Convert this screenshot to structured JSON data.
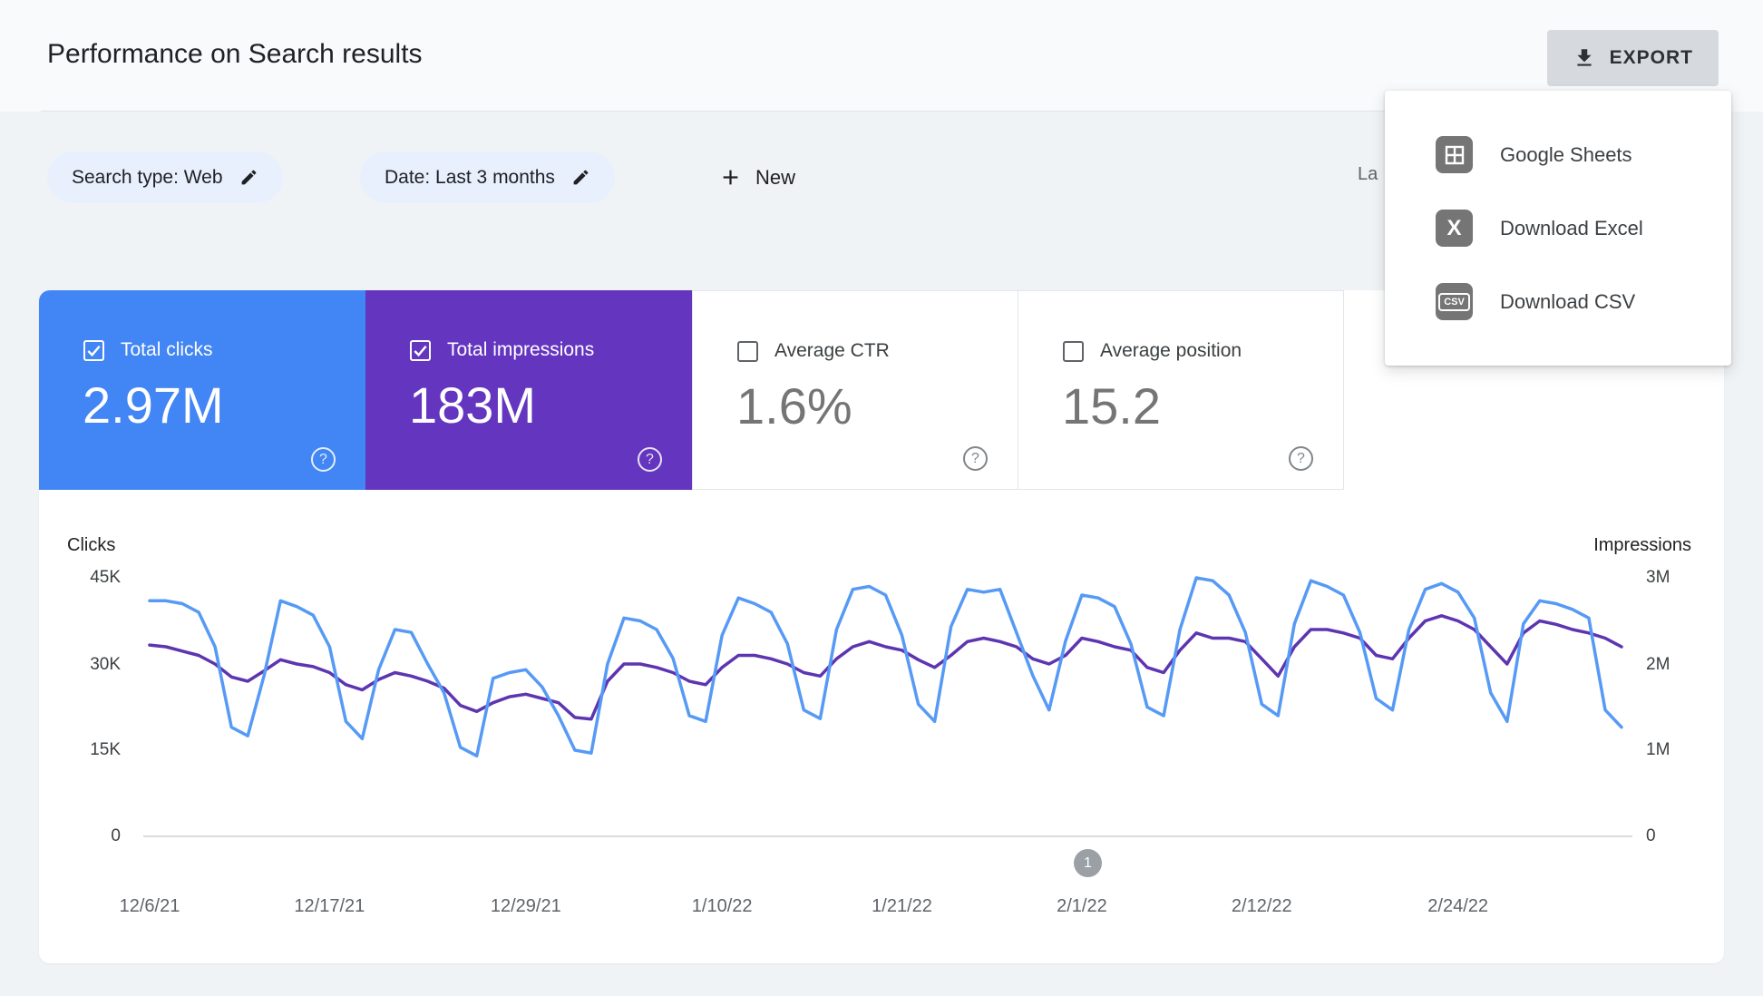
{
  "header": {
    "title": "Performance on Search results",
    "export_label": "EXPORT"
  },
  "export_menu": {
    "items": [
      {
        "icon": "google-sheets",
        "label": "Google Sheets"
      },
      {
        "icon": "excel",
        "label": "Download Excel"
      },
      {
        "icon": "csv",
        "label": "Download CSV"
      }
    ],
    "csv_icon_text": "CSV",
    "excel_icon_text": "X"
  },
  "filters": {
    "search_type_chip": "Search type: Web",
    "date_chip": "Date: Last 3 months",
    "new_label": "New",
    "last_updated_partial": "La"
  },
  "metrics": [
    {
      "label": "Total clicks",
      "value": "2.97M",
      "selected": true,
      "color": "#4285f4"
    },
    {
      "label": "Total impressions",
      "value": "183M",
      "selected": true,
      "color": "#6435bf"
    },
    {
      "label": "Average CTR",
      "value": "1.6%",
      "selected": false,
      "color": "#ffffff"
    },
    {
      "label": "Average position",
      "value": "15.2",
      "selected": false,
      "color": "#ffffff"
    }
  ],
  "chart_data": {
    "type": "line",
    "title": "Clicks and impressions over last 3 months (daily)",
    "left_axis": {
      "label": "Clicks",
      "ticks": [
        "45K",
        "30K",
        "15K",
        "0"
      ],
      "max_value": 45,
      "unit": "thousands"
    },
    "right_axis": {
      "label": "Impressions",
      "ticks": [
        "3M",
        "2M",
        "1M",
        "0"
      ],
      "max_value": 3,
      "unit": "millions"
    },
    "grid": "baseline-only",
    "legend_position": "none",
    "x_ticks": [
      {
        "label": "12/6/21",
        "day": 0
      },
      {
        "label": "12/17/21",
        "day": 11
      },
      {
        "label": "12/29/21",
        "day": 23
      },
      {
        "label": "1/10/22",
        "day": 35
      },
      {
        "label": "1/21/22",
        "day": 46
      },
      {
        "label": "2/1/22",
        "day": 57
      },
      {
        "label": "2/12/22",
        "day": 68
      },
      {
        "label": "2/24/22",
        "day": 80
      }
    ],
    "series": [
      {
        "name": "Impressions",
        "axis": "right",
        "color": "#5e35b1",
        "unit": "millions",
        "values": [
          2.22,
          2.2,
          2.15,
          2.1,
          2.0,
          1.85,
          1.8,
          1.92,
          2.05,
          2.0,
          1.97,
          1.9,
          1.76,
          1.7,
          1.82,
          1.9,
          1.86,
          1.8,
          1.72,
          1.52,
          1.45,
          1.55,
          1.62,
          1.65,
          1.6,
          1.55,
          1.38,
          1.36,
          1.8,
          2.0,
          2.0,
          1.96,
          1.9,
          1.8,
          1.76,
          1.96,
          2.1,
          2.1,
          2.06,
          2.0,
          1.9,
          1.86,
          2.06,
          2.2,
          2.26,
          2.2,
          2.16,
          2.05,
          1.96,
          2.1,
          2.26,
          2.3,
          2.26,
          2.2,
          2.06,
          2.0,
          2.1,
          2.3,
          2.26,
          2.2,
          2.16,
          1.96,
          1.9,
          2.16,
          2.36,
          2.3,
          2.3,
          2.26,
          2.06,
          1.86,
          2.2,
          2.4,
          2.4,
          2.36,
          2.3,
          2.1,
          2.06,
          2.3,
          2.5,
          2.56,
          2.5,
          2.4,
          2.2,
          2.0,
          2.36,
          2.5,
          2.46,
          2.4,
          2.36,
          2.3,
          2.2
        ]
      },
      {
        "name": "Clicks",
        "axis": "left",
        "color": "#569af6",
        "unit": "thousands",
        "values": [
          41,
          41,
          40.5,
          39,
          33,
          19,
          17.5,
          28,
          41,
          40,
          38.5,
          33,
          20,
          17,
          29,
          36,
          35.5,
          30,
          25,
          15.5,
          14,
          27.5,
          28.5,
          29,
          26,
          21,
          15,
          14.5,
          30,
          38,
          37.5,
          36,
          31,
          21,
          20,
          35,
          41.5,
          40.5,
          39,
          33.5,
          22,
          20.5,
          36,
          43,
          43.5,
          42,
          35,
          23,
          20,
          36.5,
          43,
          42.5,
          43,
          35.5,
          28,
          22,
          34,
          42,
          41.5,
          40,
          33.5,
          22.5,
          21,
          36,
          45,
          44.5,
          42,
          35.5,
          23,
          21,
          37,
          44.5,
          43.5,
          42,
          35.5,
          24,
          22,
          36,
          43,
          44,
          42.5,
          38,
          25,
          20,
          37,
          41,
          40.5,
          39.5,
          38,
          22,
          19
        ]
      }
    ],
    "pagination_label": "1"
  }
}
